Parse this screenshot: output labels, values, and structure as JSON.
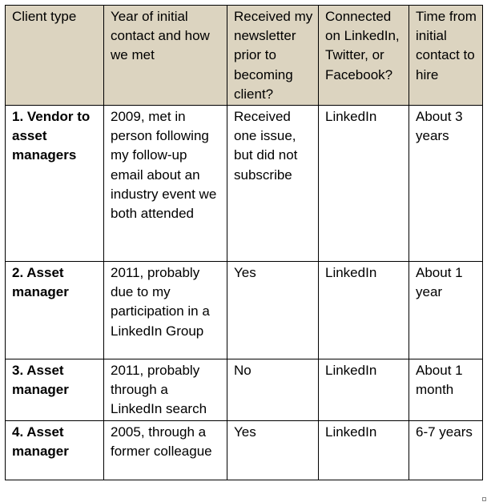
{
  "columns": [
    "Client type",
    "Year of initial contact and how we met",
    "Received my newsletter prior to becoming client?",
    "Connected on LinkedIn, Twitter, or Facebook?",
    "Time from initial contact to hire"
  ],
  "rows": [
    {
      "client_type": "1. Vendor to asset managers",
      "contact": "2009, met in person following my follow-up email about an industry event we both attended",
      "newsletter": "Received one issue, but did not subscribe",
      "connected": "LinkedIn",
      "time_to_hire": "About 3 years"
    },
    {
      "client_type": "2. Asset manager",
      "contact": "2011, probably due to my participation in a LinkedIn Group",
      "newsletter": "Yes",
      "connected": "LinkedIn",
      "time_to_hire": "About 1 year"
    },
    {
      "client_type": "3. Asset manager",
      "contact": "2011, probably through a LinkedIn search",
      "newsletter": "No",
      "connected": "LinkedIn",
      "time_to_hire": "About 1 month"
    },
    {
      "client_type": "4.  Asset manager",
      "contact": "2005, through a former colleague",
      "newsletter": "Yes",
      "connected": "LinkedIn",
      "time_to_hire": "6-7 years"
    }
  ]
}
